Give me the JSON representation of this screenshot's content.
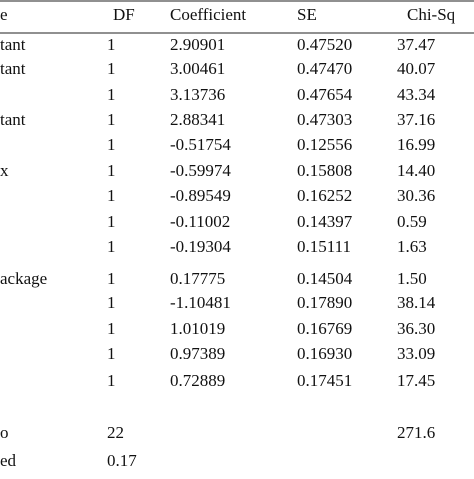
{
  "table": {
    "header": [
      "e",
      "DF",
      "Coefficient",
      "SE",
      "Chi-Sq"
    ],
    "rows": [
      [
        "tant",
        "1",
        "2.90901",
        "0.47520",
        "37.47"
      ],
      [
        "tant",
        "1",
        "3.00461",
        "0.47470",
        "40.07"
      ],
      [
        null,
        "1",
        "3.13736",
        "0.47654",
        "43.34"
      ],
      [
        "tant",
        "1",
        "2.88341",
        "0.47303",
        "37.16"
      ],
      [
        null,
        "1",
        "-0.51754",
        "0.12556",
        "16.99"
      ],
      [
        "x",
        "1",
        "-0.59974",
        "0.15808",
        "14.40"
      ],
      [
        null,
        "1",
        "-0.89549",
        "0.16252",
        "30.36"
      ],
      [
        null,
        "1",
        "-0.11002",
        "0.14397",
        "0.59"
      ],
      [
        null,
        "1",
        "-0.19304",
        "0.15111",
        "1.63"
      ],
      [
        "ackage",
        "1",
        "0.17775",
        "0.14504",
        "1.50"
      ],
      [
        null,
        "1",
        "-1.10481",
        "0.17890",
        "38.14"
      ],
      [
        null,
        "1",
        "1.01019",
        "0.16769",
        "36.30"
      ],
      [
        null,
        "1",
        "0.97389",
        "0.16930",
        "33.09"
      ],
      [
        null,
        "1",
        "0.72889",
        "0.17451",
        "17.45"
      ],
      [
        "o",
        "22",
        null,
        null,
        "271.6"
      ],
      [
        "ed",
        "0.17",
        null,
        null,
        null
      ]
    ]
  }
}
